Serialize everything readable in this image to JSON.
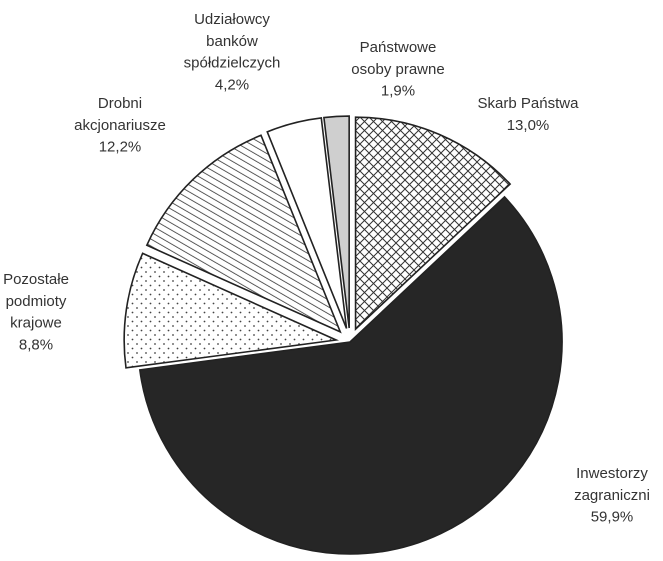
{
  "chart_data": {
    "type": "pie",
    "title": "",
    "legend": "none",
    "slices": [
      {
        "label_lines": [
          "Skarb Państwa"
        ],
        "value_label": "13,0%",
        "value": 13.0,
        "pattern": "crosshatch",
        "exploded": true
      },
      {
        "label_lines": [
          "Inwestorzy",
          "zagraniczni"
        ],
        "value_label": "59,9%",
        "value": 59.9,
        "pattern": "solid-dark",
        "exploded": false
      },
      {
        "label_lines": [
          "Pozostałe",
          "podmioty",
          "krajowe"
        ],
        "value_label": "8,8%",
        "value": 8.8,
        "pattern": "dots",
        "exploded": true
      },
      {
        "label_lines": [
          "Drobni",
          "akcjonariusze"
        ],
        "value_label": "12,2%",
        "value": 12.2,
        "pattern": "diagonal-lines",
        "exploded": true
      },
      {
        "label_lines": [
          "Udziałowcy",
          "banków",
          "spółdzielczych"
        ],
        "value_label": "4,2%",
        "value": 4.2,
        "pattern": "white",
        "exploded": true
      },
      {
        "label_lines": [
          "Państwowe",
          "osoby prawne"
        ],
        "value_label": "1,9%",
        "value": 1.9,
        "pattern": "light-gray",
        "exploded": true
      }
    ],
    "colors": {
      "dark": "#262626",
      "outline": "#222222",
      "light_gray": "#cfcfcf",
      "text": "#333333"
    }
  }
}
